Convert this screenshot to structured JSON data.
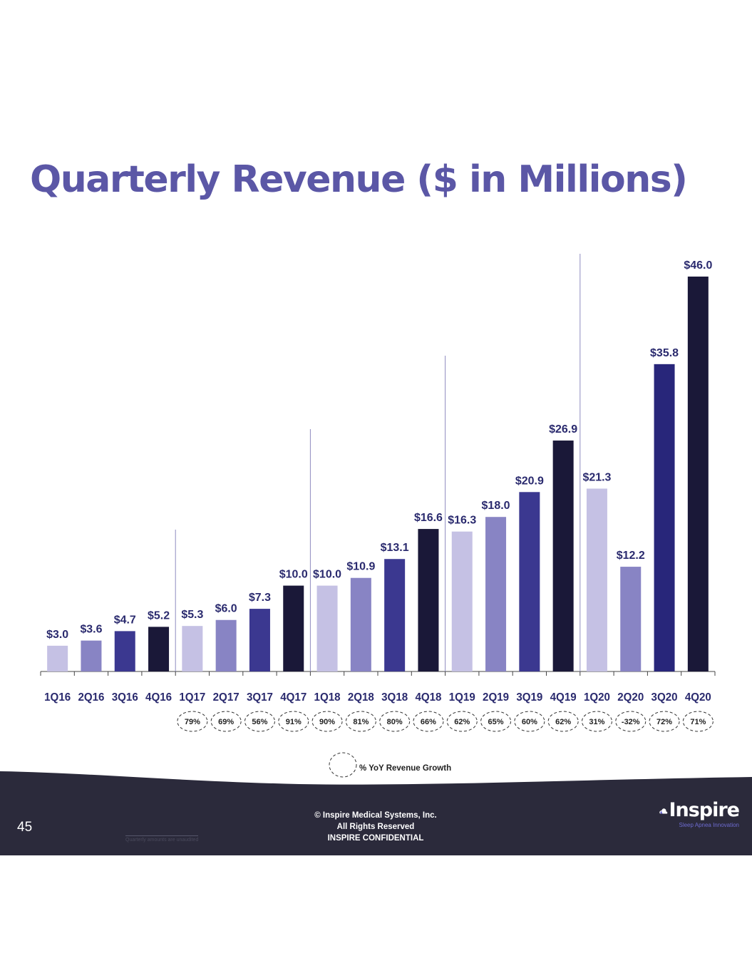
{
  "title": "Quarterly Revenue ($ in Millions)",
  "chart_data": {
    "type": "bar",
    "categories": [
      "1Q16",
      "2Q16",
      "3Q16",
      "4Q16",
      "1Q17",
      "2Q17",
      "3Q17",
      "4Q17",
      "1Q18",
      "2Q18",
      "3Q18",
      "4Q18",
      "1Q19",
      "2Q19",
      "3Q19",
      "4Q19",
      "1Q20",
      "2Q20",
      "3Q20",
      "4Q20"
    ],
    "values": [
      3.0,
      3.6,
      4.7,
      5.2,
      5.3,
      6.0,
      7.3,
      10.0,
      10.0,
      10.9,
      13.1,
      16.6,
      16.3,
      18.0,
      20.9,
      26.9,
      21.3,
      12.2,
      35.8,
      46.0
    ],
    "value_labels": [
      "$3.0",
      "$3.6",
      "$4.7",
      "$5.2",
      "$5.3",
      "$6.0",
      "$7.3",
      "$10.0",
      "$10.0",
      "$10.9",
      "$13.1",
      "$16.6",
      "$16.3",
      "$18.0",
      "$20.9",
      "$26.9",
      "$21.3",
      "$12.2",
      "$35.8",
      "$46.0"
    ],
    "growth_labels": [
      "",
      "",
      "",
      "",
      "79%",
      "69%",
      "56%",
      "91%",
      "90%",
      "81%",
      "80%",
      "66%",
      "62%",
      "65%",
      "60%",
      "62%",
      "31%",
      "-32%",
      "72%",
      "71%"
    ],
    "quarter_colors": [
      "#c5c1e4",
      "#8884c4",
      "#3b3890",
      "#1a1838"
    ],
    "bar_colors_2020": [
      "#c5c1e4",
      "#8884c4",
      "#28267a",
      "#1a1838"
    ],
    "label_color": "#2a2a6e",
    "year_separators": "between each year",
    "ylim": [
      0,
      46
    ]
  },
  "legend": {
    "label": "% YoY Revenue Growth"
  },
  "footer": {
    "page_number": "45",
    "footnote": "Quarterly amounts are unaudited",
    "copyright_lines": [
      "© Inspire Medical Systems, Inc.",
      "All Rights Reserved",
      "INSPIRE CONFIDENTIAL"
    ],
    "logo_text": "Inspire",
    "logo_tagline": "Sleep Apnea Innovation",
    "band_color": "#2b2a3b"
  }
}
